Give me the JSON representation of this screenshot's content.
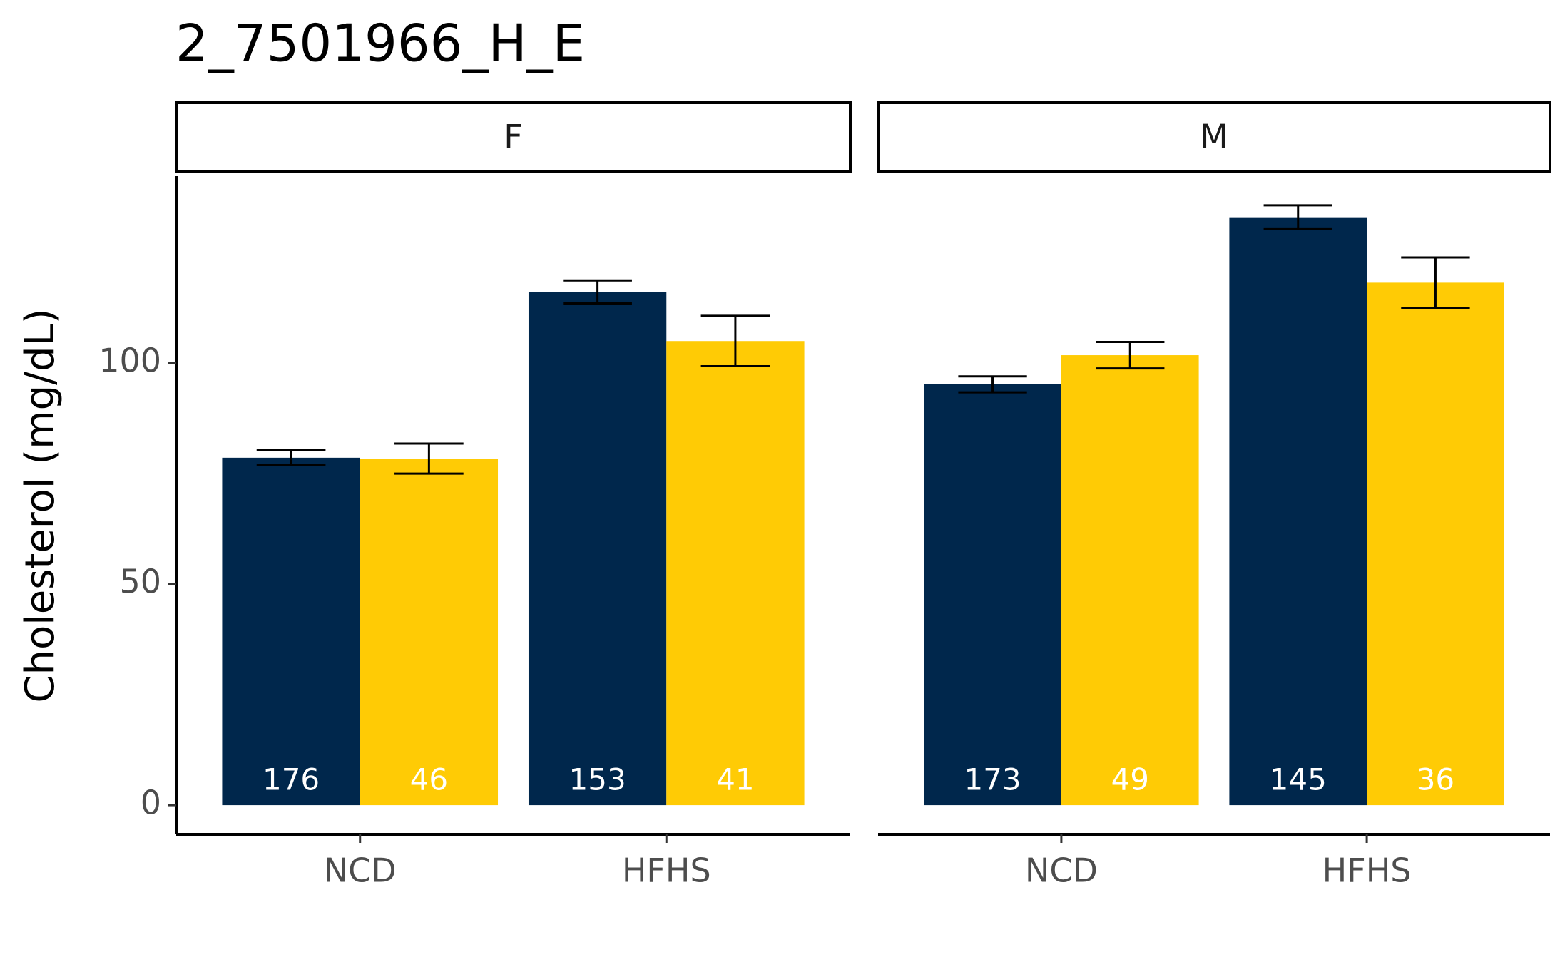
{
  "chart_data": {
    "type": "bar",
    "title": "2_7501966_H_E",
    "ylabel": "Cholesterol (mg/dL)",
    "ylim": [
      -6.6,
      142.3
    ],
    "yticks": [
      0,
      50,
      100
    ],
    "facets": [
      {
        "label": "F",
        "categories": [
          "NCD",
          "HFHS"
        ],
        "series": [
          {
            "color": "#00274c",
            "values": [
              78.6,
              116.1
            ],
            "errors": [
              1.7,
              2.6
            ],
            "counts": [
              176,
              153
            ]
          },
          {
            "color": "#ffcb05",
            "values": [
              78.4,
              105.0
            ],
            "errors": [
              3.4,
              5.7
            ],
            "counts": [
              46,
              41
            ]
          }
        ]
      },
      {
        "label": "M",
        "categories": [
          "NCD",
          "HFHS"
        ],
        "series": [
          {
            "color": "#00274c",
            "values": [
              95.2,
              133.0
            ],
            "errors": [
              1.8,
              2.7
            ],
            "counts": [
              173,
              145
            ]
          },
          {
            "color": "#ffcb05",
            "values": [
              101.8,
              118.2
            ],
            "errors": [
              3.0,
              5.7
            ],
            "counts": [
              49,
              36
            ]
          }
        ]
      }
    ]
  }
}
